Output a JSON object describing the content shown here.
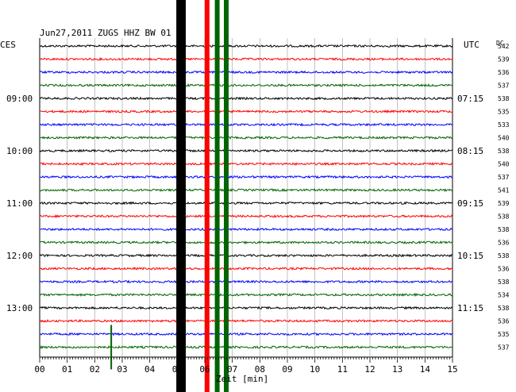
{
  "chart_data": {
    "type": "line",
    "title": "Jun27,2011  ZUGS HHZ BW 01",
    "xlabel": "Zeit [min]",
    "left_tz": "CES",
    "right_tz": "UTC",
    "dc_header": "DC",
    "xlim": [
      0,
      15
    ],
    "x_ticks": [
      "00",
      "01",
      "02",
      "03",
      "04",
      "05",
      "06",
      "07",
      "08",
      "09",
      "10",
      "11",
      "12",
      "13",
      "14",
      "15"
    ],
    "left_hour_labels": [
      "09:00",
      "10:00",
      "11:00",
      "12:00",
      "13:00"
    ],
    "right_hour_labels": [
      "07:15",
      "08:15",
      "09:15",
      "10:15",
      "11:15"
    ],
    "trace_colors": [
      "#000000",
      "#ff0000",
      "#0000ff",
      "#006400"
    ],
    "dc_values": [
      "542",
      "539",
      "536",
      "537",
      "538",
      "535",
      "533",
      "540",
      "538",
      "540",
      "537",
      "541",
      "539",
      "538",
      "538",
      "536",
      "538",
      "536",
      "538",
      "534",
      "538",
      "536",
      "535",
      "537"
    ],
    "events": [
      {
        "minute": 5.05,
        "note": "saturated",
        "color": "#000000"
      },
      {
        "minute": 5.22,
        "note": "saturated",
        "color": "#000000"
      },
      {
        "minute": 6.08,
        "note": "saturated",
        "color": "#ff0000"
      },
      {
        "minute": 6.45,
        "note": "saturated",
        "color": "#006400"
      },
      {
        "minute": 6.78,
        "note": "saturated",
        "color": "#006400"
      },
      {
        "minute": 2.6,
        "note": "spike",
        "color": "#006400"
      }
    ]
  }
}
